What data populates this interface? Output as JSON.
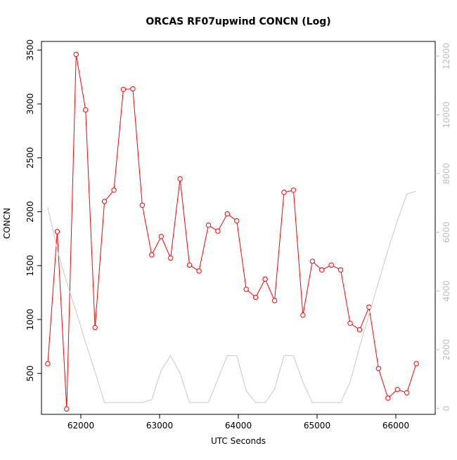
{
  "chart_data": {
    "type": "line",
    "title": "ORCAS RF07upwind CONCN (Log)",
    "xlabel": "UTC Seconds",
    "ylabel": "CONCN",
    "xlim": [
      61500,
      66500
    ],
    "ylim": [
      120,
      3580
    ],
    "y2lim": [
      -200,
      12500
    ],
    "x_ticks": [
      62000,
      63000,
      64000,
      65000,
      66000
    ],
    "y_ticks": [
      500,
      1000,
      1500,
      2000,
      2500,
      3000,
      3500
    ],
    "y2_ticks": [
      0,
      2000,
      4000,
      6000,
      8000,
      10000,
      12000
    ],
    "grid": false,
    "legend": "none",
    "series": [
      {
        "axis": "left",
        "color": "#ff0000",
        "marker": "open-circle",
        "x": [
          61580,
          61700,
          61820,
          61940,
          62060,
          62180,
          62300,
          62420,
          62540,
          62660,
          62780,
          62900,
          63020,
          63140,
          63260,
          63380,
          63500,
          63620,
          63740,
          63860,
          63980,
          64100,
          64220,
          64340,
          64460,
          64580,
          64700,
          64820,
          64940,
          65060,
          65180,
          65300,
          65420,
          65540,
          65660,
          65780,
          65900,
          66020,
          66140,
          66260
        ],
        "values": [
          590,
          1815,
          170,
          3460,
          2945,
          925,
          2095,
          2200,
          3135,
          3140,
          2060,
          1600,
          1770,
          1570,
          2305,
          1505,
          1450,
          1875,
          1820,
          1980,
          1915,
          1280,
          1205,
          1375,
          1175,
          2180,
          2200,
          1040,
          1540,
          1460,
          1505,
          1460,
          965,
          905,
          1115,
          545,
          270,
          350,
          320,
          590
        ]
      },
      {
        "axis": "right",
        "color": "#c8c8c8",
        "marker": "none",
        "x": [
          61580,
          61700,
          61820,
          61940,
          62060,
          62180,
          62300,
          62420,
          62540,
          62660,
          62780,
          62900,
          63020,
          63140,
          63260,
          63380,
          63500,
          63620,
          63740,
          63860,
          63980,
          64100,
          64220,
          64340,
          64460,
          64580,
          64700,
          64820,
          64940,
          65060,
          65180,
          65300,
          65420,
          65540,
          65660,
          65780,
          65900,
          66020,
          66140,
          66260
        ],
        "values": [
          6850,
          5400,
          4300,
          3300,
          2250,
          1250,
          200,
          200,
          200,
          200,
          200,
          300,
          1300,
          1800,
          1200,
          200,
          200,
          200,
          1000,
          1800,
          1800,
          600,
          200,
          200,
          650,
          1800,
          1800,
          900,
          200,
          200,
          200,
          200,
          900,
          2100,
          3200,
          4300,
          5400,
          6400,
          7300,
          7400
        ]
      }
    ]
  }
}
